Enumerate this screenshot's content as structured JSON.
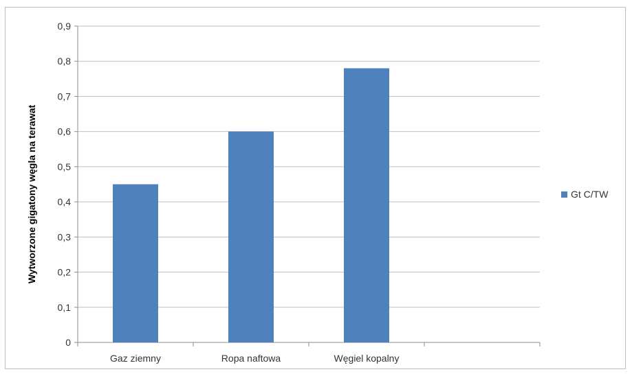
{
  "chart_data": {
    "type": "bar",
    "categories": [
      "Gaz ziemny",
      "Ropa naftowa",
      "Węgiel kopalny",
      ""
    ],
    "series": [
      {
        "name": "Gt C/TW",
        "values": [
          0.45,
          0.6,
          0.78,
          null
        ]
      }
    ],
    "ylabel": "Wytworzone gigatony węgla na terawat",
    "xlabel": "",
    "ylim": [
      0,
      0.9
    ],
    "yticks": [
      "0",
      "0,1",
      "0,2",
      "0,3",
      "0,4",
      "0,5",
      "0,6",
      "0,7",
      "0,8",
      "0,9"
    ],
    "grid": true,
    "legend_position": "right",
    "colors": {
      "bar": "#4f81bd",
      "grid": "#bfbfbf",
      "axis": "#8c8c8c"
    }
  }
}
